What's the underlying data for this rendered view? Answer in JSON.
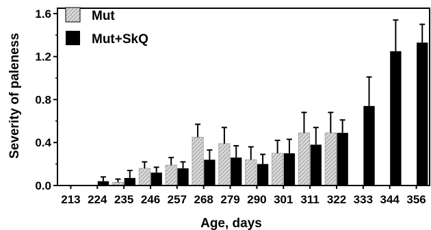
{
  "chart_data": {
    "type": "bar",
    "xlabel": "Age, days",
    "ylabel": "Severity of paleness",
    "ylim": [
      0,
      1.65
    ],
    "yticks": [
      "0.0",
      "0.4",
      "0.8",
      "1.2",
      "1.6"
    ],
    "legend_position": "top-left",
    "categories": [
      "213",
      "224",
      "235",
      "246",
      "257",
      "268",
      "279",
      "290",
      "301",
      "311",
      "322",
      "333",
      "344",
      "356"
    ],
    "series": [
      {
        "name": "Mut",
        "style": "hatched-gray",
        "values": [
          0,
          0,
          0.03,
          0.16,
          0.19,
          0.45,
          0.39,
          0.24,
          0.3,
          0.49,
          0.49,
          null,
          null,
          null
        ],
        "errors": [
          0,
          0,
          0.03,
          0.06,
          0.07,
          0.12,
          0.15,
          0.12,
          0.12,
          0.19,
          0.19,
          null,
          null,
          null
        ]
      },
      {
        "name": "Mut+SkQ",
        "style": "solid-black",
        "values": [
          0,
          0.04,
          0.07,
          0.12,
          0.16,
          0.24,
          0.26,
          0.2,
          0.3,
          0.38,
          0.49,
          0.74,
          1.25,
          1.33
        ],
        "errors": [
          0,
          0.04,
          0.07,
          0.05,
          0.06,
          0.09,
          0.11,
          0.09,
          0.13,
          0.16,
          0.12,
          0.27,
          0.29,
          0.17
        ]
      }
    ]
  },
  "colors": {
    "mut_fill": "#d9d9d9",
    "mut_hatch": "#8c8c8c",
    "skq_fill": "#000000"
  }
}
